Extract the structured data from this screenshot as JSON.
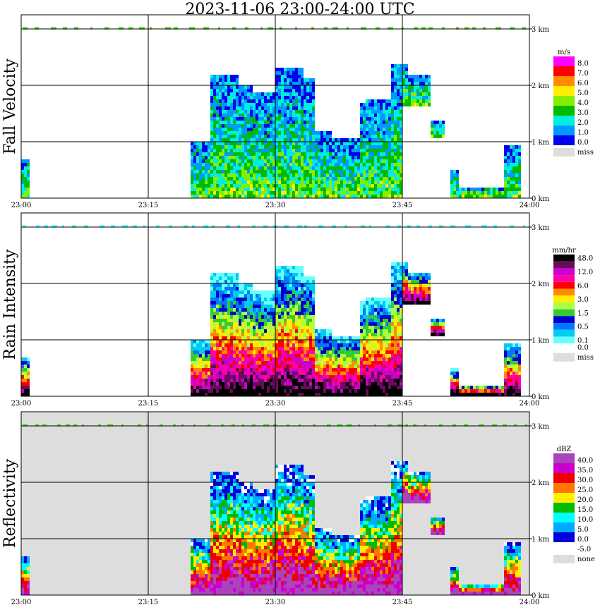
{
  "title": "2023-11-06   23:00-24:00 UTC",
  "time_ticks": [
    "23:00",
    "23:15",
    "23:30",
    "23:45",
    "24:00"
  ],
  "height_ticks": [
    "0 km",
    "1 km",
    "2 km",
    "3 km"
  ],
  "panels": [
    {
      "ylabel": "Fall Velocity",
      "unit": "m/s",
      "scale": [
        {
          "label": "8.0",
          "color": "#ff00ff"
        },
        {
          "label": "7.0",
          "color": "#ff0000"
        },
        {
          "label": "6.0",
          "color": "#ff8c00"
        },
        {
          "label": "5.0",
          "color": "#ffee00"
        },
        {
          "label": "4.0",
          "color": "#88ee00"
        },
        {
          "label": "3.0",
          "color": "#00bb00"
        },
        {
          "label": "2.0",
          "color": "#00eedd"
        },
        {
          "label": "1.0",
          "color": "#0099ff"
        },
        {
          "label": "0.0",
          "color": "#0000ee"
        }
      ],
      "missing_label": "miss",
      "missing_color": "#dddddd",
      "background": "#ffffff"
    },
    {
      "ylabel": "Rain Intensity",
      "unit": "mm/hr",
      "scale": [
        {
          "label": "48.0",
          "color": "#000000"
        },
        {
          "label": "",
          "color": "#6a0a5a"
        },
        {
          "label": "12.0",
          "color": "#cc00cc"
        },
        {
          "label": "",
          "color": "#ff00aa"
        },
        {
          "label": "6.0",
          "color": "#ff0000"
        },
        {
          "label": "",
          "color": "#ff8c00"
        },
        {
          "label": "3.0",
          "color": "#ffee00"
        },
        {
          "label": "",
          "color": "#aaff44"
        },
        {
          "label": "1.5",
          "color": "#33cc33"
        },
        {
          "label": "",
          "color": "#0000cc"
        },
        {
          "label": "0.5",
          "color": "#0077ff"
        },
        {
          "label": "",
          "color": "#00ccee"
        },
        {
          "label": "0.1",
          "color": "#66ffff"
        },
        {
          "label": "0.0",
          "color": "#ffffff"
        }
      ],
      "missing_label": "miss",
      "missing_color": "#dddddd",
      "background": "#ffffff"
    },
    {
      "ylabel": "Reflectivity",
      "unit": "dBZ",
      "scale": [
        {
          "label": "40.0",
          "color": "#aa44bb"
        },
        {
          "label": "35.0",
          "color": "#cc00cc"
        },
        {
          "label": "30.0",
          "color": "#ee0000"
        },
        {
          "label": "25.0",
          "color": "#ff7700"
        },
        {
          "label": "20.0",
          "color": "#ffee00"
        },
        {
          "label": "15.0",
          "color": "#00bb00"
        },
        {
          "label": "10.0",
          "color": "#00ffff"
        },
        {
          "label": "5.0",
          "color": "#00aaff"
        },
        {
          "label": "0.0",
          "color": "#0000dd"
        },
        {
          "label": "-5.0",
          "color": "#ffffff"
        }
      ],
      "missing_label": "none",
      "missing_color": "#dddddd",
      "background": "#dddddd"
    }
  ],
  "chart_data": [
    {
      "type": "heatmap",
      "title": "2023-11-06   23:00-24:00 UTC",
      "ylabel": "Fall Velocity",
      "xlabel": "",
      "x_ticks": [
        "23:00",
        "23:15",
        "23:30",
        "23:45",
        "24:00"
      ],
      "y_ticks": [
        "0 km",
        "1 km",
        "2 km",
        "3 km"
      ],
      "ylim_km": [
        0,
        3.2
      ],
      "colorbar_unit": "m/s",
      "colorbar_levels": [
        "8.0",
        "7.0",
        "6.0",
        "5.0",
        "4.0",
        "3.0",
        "2.0",
        "1.0",
        "0.0"
      ],
      "grid": true
    },
    {
      "type": "heatmap",
      "ylabel": "Rain Intensity",
      "xlabel": "",
      "x_ticks": [
        "23:00",
        "23:15",
        "23:30",
        "23:45",
        "24:00"
      ],
      "y_ticks": [
        "0 km",
        "1 km",
        "2 km",
        "3 km"
      ],
      "ylim_km": [
        0,
        3.2
      ],
      "colorbar_unit": "mm/hr",
      "colorbar_levels": [
        "48.0",
        "12.0",
        "6.0",
        "3.0",
        "1.5",
        "0.5",
        "0.1",
        "0.0"
      ],
      "grid": true
    },
    {
      "type": "heatmap",
      "ylabel": "Reflectivity",
      "xlabel": "",
      "x_ticks": [
        "23:00",
        "23:15",
        "23:30",
        "23:45",
        "24:00"
      ],
      "y_ticks": [
        "0 km",
        "1 km",
        "2 km",
        "3 km"
      ],
      "ylim_km": [
        0,
        3.2
      ],
      "colorbar_unit": "dBZ",
      "colorbar_levels": [
        "40.0",
        "35.0",
        "30.0",
        "25.0",
        "20.0",
        "15.0",
        "10.0",
        "5.0",
        "0.0",
        "-5.0"
      ],
      "grid": true
    }
  ]
}
